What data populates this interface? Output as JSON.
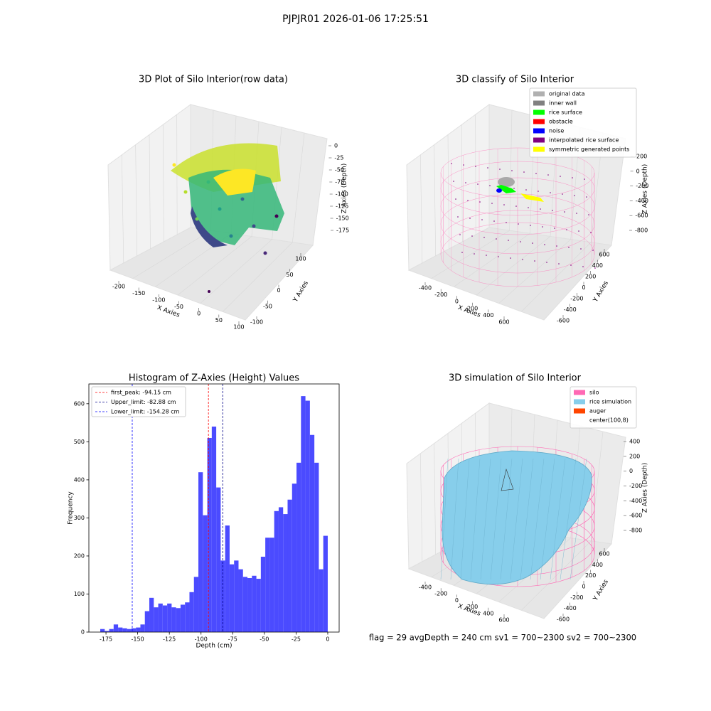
{
  "suptitle": "PJPJR01 2026-01-06 17:25:51",
  "footer": "flag = 29  avgDepth = 240 cm  sv1 = 700~2300  sv2 = 700~2300",
  "chart_data": [
    {
      "type": "scatter3d",
      "title": "3D Plot of Silo Interior(row data)",
      "xlabel": "X Axies",
      "ylabel": "Y Axies",
      "zlabel": "Z Axies (Depth)",
      "xticks": [
        -200,
        -150,
        -100,
        -50,
        0,
        50,
        100
      ],
      "yticks": [
        -100,
        -50,
        0,
        50,
        100
      ],
      "zticks": [
        0,
        -25,
        -50,
        -75,
        -100,
        -125,
        -150,
        -175
      ]
    },
    {
      "type": "scatter3d",
      "title": "3D classify of Silo Interior",
      "xlabel": "X Axies",
      "ylabel": "Y Axies",
      "zlabel": "Z Axies (Depth)",
      "xticks": [
        -400,
        -200,
        0,
        200,
        400,
        600
      ],
      "yticks": [
        -600,
        -400,
        -200,
        0,
        200,
        400,
        600
      ],
      "zticks": [
        200,
        0,
        -200,
        -400,
        -600,
        -800
      ],
      "legend": [
        {
          "name": "original data",
          "color": "#b0b0b0"
        },
        {
          "name": "inner wall",
          "color": "#808080"
        },
        {
          "name": "rice surface",
          "color": "#00ff00"
        },
        {
          "name": "obstacle",
          "color": "#ff0000"
        },
        {
          "name": "noise",
          "color": "#0000ff"
        },
        {
          "name": "interpolated rice surface",
          "color": "#800080"
        },
        {
          "name": "symmetric generated points",
          "color": "#ffff00"
        }
      ]
    },
    {
      "type": "histogram",
      "title": "Histogram of Z-Axies (Height) Values",
      "xlabel": "Depth (cm)",
      "ylabel": "Frequency",
      "color": "#4b4bff",
      "bins": [
        -179.52,
        -176,
        -172.48,
        -168.96,
        -165.44,
        -161.92,
        -158.4,
        -154.88,
        -151.36,
        -147.84,
        -144.32,
        -140.8,
        -137.28,
        -133.76,
        -130.24,
        -126.72,
        -123.2,
        -119.68,
        -116.16,
        -112.64,
        -109.12,
        -105.6,
        -102.08,
        -98.56,
        -95.04,
        -91.52,
        -88,
        -84.48,
        -80.96,
        -77.44,
        -73.92,
        -70.4,
        -66.88,
        -63.36,
        -59.84,
        -56.32,
        -52.8,
        -49.28,
        -45.76,
        -42.24,
        -38.72,
        -35.2,
        -31.68,
        -28.16,
        -24.64,
        -21.12,
        -17.6,
        -14.08,
        -10.56,
        -7.04,
        -3.52,
        0
      ],
      "counts": [
        8,
        3,
        8,
        20,
        12,
        10,
        8,
        10,
        12,
        20,
        55,
        90,
        65,
        75,
        70,
        75,
        65,
        63,
        72,
        78,
        105,
        145,
        420,
        307,
        510,
        540,
        380,
        188,
        280,
        178,
        188,
        165,
        145,
        142,
        148,
        140,
        198,
        248,
        248,
        318,
        328,
        310,
        348,
        390,
        445,
        620,
        608,
        518,
        445,
        165,
        253
      ],
      "xlim": [
        -188.5,
        9
      ],
      "ylim": [
        0,
        652
      ],
      "xticks": [
        -175,
        -150,
        -125,
        -100,
        -75,
        -50,
        -25,
        0
      ],
      "yticks": [
        0,
        100,
        200,
        300,
        400,
        500,
        600
      ],
      "vlines": [
        {
          "name": "first_peak: -94.15 cm",
          "value": -94.15,
          "color": "#ff0000"
        },
        {
          "name": "Upper_limit: -82.88 cm",
          "value": -82.88,
          "color": "#00008b"
        },
        {
          "name": "Lower_limit: -154.28 cm",
          "value": -154.28,
          "color": "#0000ff"
        }
      ],
      "legend_loc": "upper left"
    },
    {
      "type": "surface3d",
      "title": "3D simulation of Silo Interior",
      "xlabel": "X Axies",
      "ylabel": "Y Axies",
      "zlabel": "Z Axies (Depth)",
      "xticks": [
        -400,
        -200,
        0,
        200,
        400,
        600
      ],
      "yticks": [
        -600,
        -400,
        -200,
        0,
        200,
        400,
        600
      ],
      "zticks": [
        400,
        200,
        0,
        -200,
        -400,
        -600,
        -800
      ],
      "legend": [
        {
          "name": "silo",
          "color": "#ff69b4"
        },
        {
          "name": "rice simulation",
          "color": "#87ceeb"
        },
        {
          "name": "auger",
          "color": "#ff4500"
        },
        {
          "name": "center(100,8)",
          "color": "#ffffff"
        }
      ]
    }
  ]
}
